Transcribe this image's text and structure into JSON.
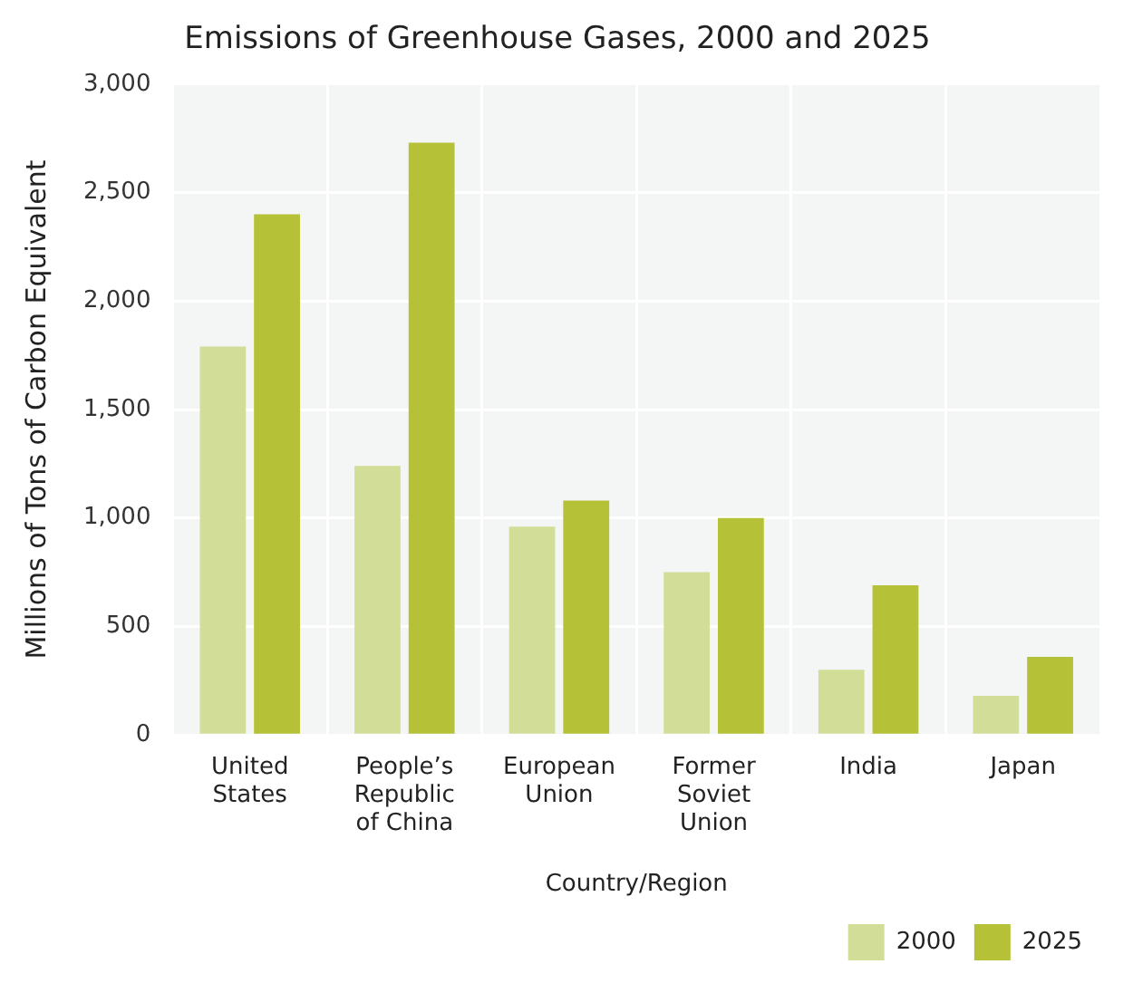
{
  "chart_data": {
    "type": "bar",
    "title": "Emissions of Greenhouse Gases, 2000 and 2025",
    "xlabel": "Country/Region",
    "ylabel": "Millions of Tons of Carbon Equivalent",
    "categories": [
      "United States",
      "People’s Republic of China",
      "European Union",
      "Former Soviet Union",
      "India",
      "Japan"
    ],
    "series": [
      {
        "name": "2000",
        "color": "#d2de97",
        "values": [
          1790,
          1240,
          960,
          750,
          300,
          180
        ]
      },
      {
        "name": "2025",
        "color": "#b5c136",
        "values": [
          2400,
          2730,
          1080,
          1000,
          690,
          360
        ]
      }
    ],
    "ylim": [
      0,
      3000
    ],
    "yticks": [
      0,
      500,
      {
        "value": 1000,
        "label": "1,000"
      },
      {
        "value": 1500,
        "label": "1,500"
      },
      {
        "value": 2000,
        "label": "2,000"
      },
      {
        "value": 2500,
        "label": "2,500"
      },
      {
        "value": 3000,
        "label": "3,000"
      }
    ],
    "grid": true,
    "legend": "bottom right"
  }
}
